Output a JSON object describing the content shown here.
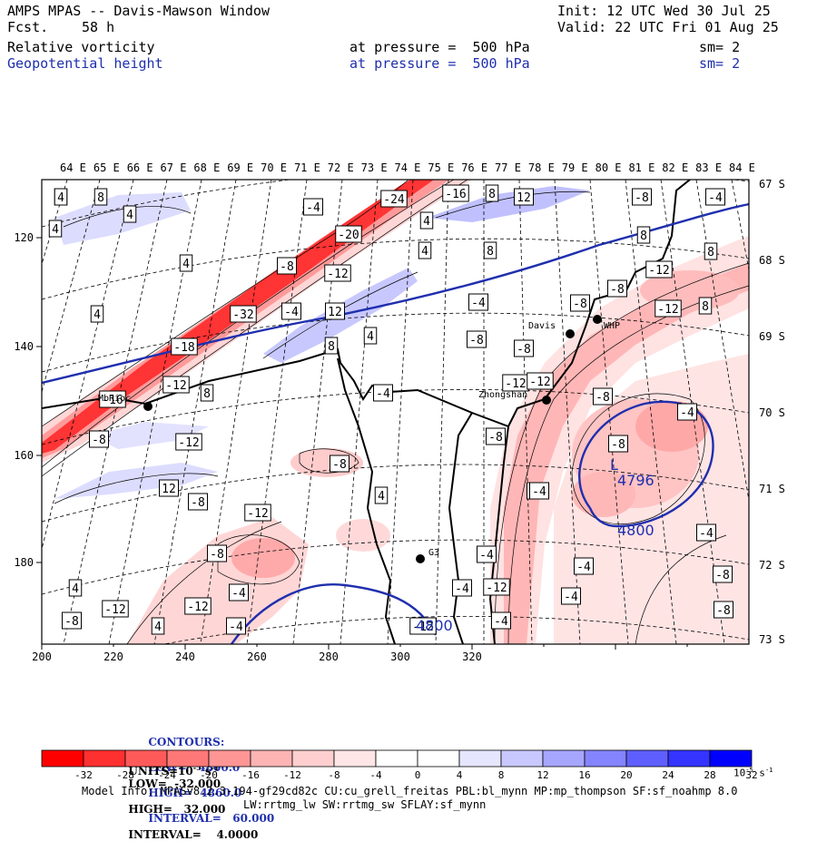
{
  "header": {
    "title": "AMPS MPAS -- Davis-Mawson Window",
    "fcst_label": "Fcst.",
    "fcst_value": "58 h",
    "init": "Init: 12 UTC Wed 30 Jul 25",
    "valid": "Valid: 22 UTC Fri 01 Aug 25",
    "field1": {
      "name": "Relative vorticity",
      "level": "at pressure =  500 hPa",
      "smooth": "sm= 2"
    },
    "field2": {
      "name": "Geopotential height",
      "level": "at pressure =  500 hPa",
      "smooth": "sm= 2"
    }
  },
  "map": {
    "lon_labels": [
      "64 E",
      "65 E",
      "66 E",
      "67 E",
      "68 E",
      "69 E",
      "70 E",
      "71 E",
      "72 E",
      "73 E",
      "74 E",
      "75 E",
      "76 E",
      "77 E",
      "78 E",
      "79 E",
      "80 E",
      "81 E",
      "82 E",
      "83 E",
      "84 E"
    ],
    "lat_labels": [
      "67 S",
      "68 S",
      "69 S",
      "70 S",
      "71 S",
      "72 S",
      "73 S"
    ],
    "x_ticks": [
      "200",
      "220",
      "240",
      "260",
      "280",
      "300",
      "320"
    ],
    "y_ticks": [
      "120",
      "140",
      "160",
      "180"
    ],
    "stations": [
      "MbRioc",
      "Davis",
      "WHP",
      "Zhongshan",
      "G3"
    ],
    "height_labels": [
      "4796",
      "4800",
      "4800"
    ],
    "low_marker": "L",
    "vort_labels": [
      "4",
      "8",
      "4",
      "4",
      "-4",
      "-24",
      "-16",
      "8",
      "12",
      "-8",
      "-4",
      "4",
      "-20",
      "4",
      "8",
      "8",
      "-8",
      "-12",
      "-12",
      "8",
      "-8",
      "4",
      "-8",
      "-12",
      "4",
      "-32",
      "-4",
      "12",
      "-4",
      "8",
      "-12",
      "-8",
      "-8",
      "-12",
      "-8",
      "-18",
      "8",
      "4",
      "-4",
      "-12",
      "-16",
      "8",
      "-8",
      "-4",
      "-12",
      "-8",
      "12",
      "-8",
      "-8",
      "4",
      "-8",
      "-12",
      "12",
      "-4",
      "-4",
      "-8",
      "-12",
      "-4",
      "-4",
      "4",
      "-12",
      "-12",
      "-4",
      "-4",
      "-8",
      "4",
      "-4",
      "-8",
      "-12",
      "-8",
      "-4",
      "-4",
      "4"
    ],
    "colors": {
      "coast": "#000000",
      "height_contour": "#1f2fae",
      "neg_max": "#ff0000",
      "pos_max": "#0000ff"
    }
  },
  "legend": {
    "height_contours": {
      "label": "CONTOURS:",
      "units": "UNITS=m",
      "low": "LOW=   4800.0",
      "high": "HIGH=  4860.0",
      "interval": "INTERVAL=   60.000"
    },
    "vort_contours": {
      "label": "CONTOURS:",
      "units": "UNITS=10",
      "units_exp": "-5",
      "units_s": " s",
      "units_s_exp": "-1",
      "low": "LOW=  -32.000",
      "high": "HIGH=   32.000",
      "interval": "INTERVAL=    4.0000"
    },
    "colorbar_ticks": [
      "-32",
      "-28",
      "-24",
      "-20",
      "-16",
      "-12",
      "-8",
      "-4",
      "0",
      "4",
      "8",
      "12",
      "16",
      "20",
      "24",
      "28",
      "32"
    ],
    "colorbar_units": "10",
    "colorbar_units_exp": "-5",
    "colorbar_units_s": " s",
    "colorbar_units_s_exp": "-1",
    "colorbar_colors": [
      "#ff0000",
      "#ff3030",
      "#ff5a5a",
      "#ff7878",
      "#ff9696",
      "#ffb4b4",
      "#ffcfcf",
      "#ffe6e6",
      "#ffffff",
      "#ffffff",
      "#e6e6ff",
      "#c8c8ff",
      "#a6a6ff",
      "#8484ff",
      "#5f5fff",
      "#3434ff",
      "#0000ff"
    ]
  },
  "footer": {
    "model_info": "Model Info: MPASv8.2.3-194-gf29cd82c CU:cu_grell_freitas PBL:bl_mynn MP:mp_thompson SF:sf_noahmp 8.0",
    "model_info2": "LW:rrtmg_lw SW:rrtmg_sw SFLAY:sf_mynn"
  }
}
